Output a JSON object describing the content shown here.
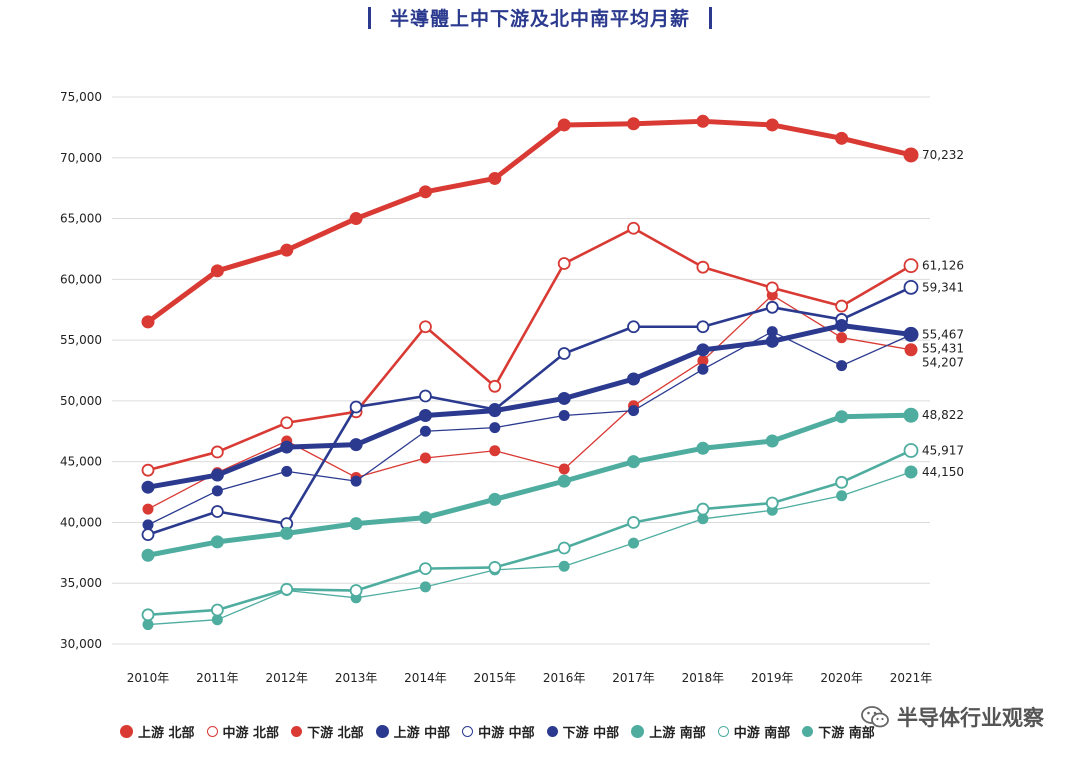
{
  "title": "半導體上中下游及北中南平均月薪",
  "watermark": "半导体行业观察",
  "colors": {
    "north": "#d93a34",
    "central": "#2b3a8f",
    "south": "#4fada0"
  },
  "chart_data": {
    "type": "line",
    "title": "半導體上中下游及北中南平均月薪",
    "categories": [
      "2010年",
      "2011年",
      "2012年",
      "2013年",
      "2014年",
      "2015年",
      "2016年",
      "2017年",
      "2018年",
      "2019年",
      "2020年",
      "2021年"
    ],
    "ylim": [
      30000,
      75000
    ],
    "yticks": [
      "30,000",
      "35,000",
      "40,000",
      "45,000",
      "50,000",
      "55,000",
      "60,000",
      "65,000",
      "70,000",
      "75,000"
    ],
    "grid": true,
    "legend_position": "bottom",
    "series": [
      {
        "name": "上游 北部",
        "region": "north",
        "style": "upstream",
        "values": [
          56500,
          60700,
          62400,
          65000,
          67200,
          68300,
          72700,
          72800,
          73000,
          72700,
          71600,
          70232
        ]
      },
      {
        "name": "中游 北部",
        "region": "north",
        "style": "midstream",
        "values": [
          44300,
          45800,
          48200,
          49100,
          56100,
          51200,
          61300,
          64200,
          61000,
          59300,
          57800,
          61126
        ]
      },
      {
        "name": "下游 北部",
        "region": "north",
        "style": "downstream",
        "values": [
          41100,
          44100,
          46700,
          43700,
          45300,
          45900,
          44400,
          49600,
          53300,
          58700,
          55200,
          54207
        ]
      },
      {
        "name": "上游 中部",
        "region": "central",
        "style": "upstream",
        "values": [
          42900,
          43900,
          46200,
          46400,
          48800,
          49200,
          50200,
          51800,
          54200,
          54900,
          56200,
          55467
        ]
      },
      {
        "name": "中游 中部",
        "region": "central",
        "style": "midstream",
        "values": [
          39000,
          40900,
          39900,
          49500,
          50400,
          49300,
          53900,
          56100,
          56100,
          57700,
          56700,
          59341
        ]
      },
      {
        "name": "下游 中部",
        "region": "central",
        "style": "downstream",
        "values": [
          39800,
          42600,
          44200,
          43400,
          47500,
          47800,
          48800,
          49200,
          52600,
          55700,
          52900,
          55431
        ]
      },
      {
        "name": "上游 南部",
        "region": "south",
        "style": "upstream",
        "values": [
          37300,
          38400,
          39100,
          39900,
          40400,
          41900,
          43400,
          45000,
          46100,
          46700,
          48700,
          48822
        ]
      },
      {
        "name": "中游 南部",
        "region": "south",
        "style": "midstream",
        "values": [
          32400,
          32800,
          34500,
          34400,
          36200,
          36300,
          37900,
          40000,
          41100,
          41600,
          43300,
          45917
        ]
      },
      {
        "name": "下游 南部",
        "region": "south",
        "style": "downstream",
        "values": [
          31600,
          32000,
          34400,
          33800,
          34700,
          36100,
          36400,
          38300,
          40300,
          41000,
          42200,
          44150
        ]
      }
    ],
    "end_labels": [
      "70,232",
      "61,126",
      "59,341",
      "55,467",
      "55,431",
      "54,207",
      "48,822",
      "45,917",
      "44,150"
    ]
  }
}
